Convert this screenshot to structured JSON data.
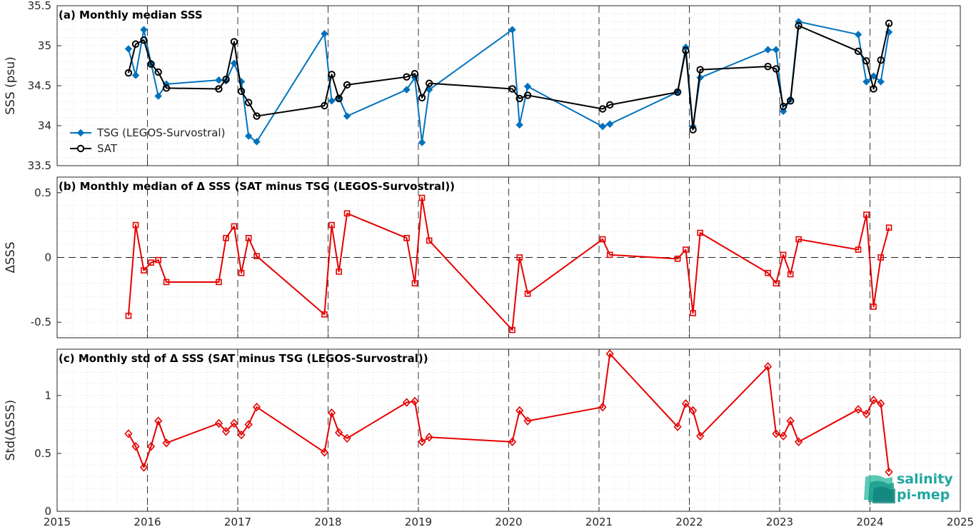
{
  "chart_data": [
    {
      "type": "line",
      "title": "(a) Monthly median SSS",
      "ylabel": "SSS (psu)",
      "xlim": [
        2015,
        2025
      ],
      "ylim": [
        33.5,
        35.5
      ],
      "yticks": [
        "33.5",
        "34",
        "34.5",
        "35",
        "35.5"
      ],
      "grid": true,
      "legend": "bottom-left",
      "series": [
        {
          "name": "TSG (LEGOS-Survostral)",
          "color": "#0072bd",
          "marker": "diamond-filled",
          "x": [
            2015.79,
            2015.87,
            2015.96,
            2016.04,
            2016.12,
            2016.21,
            2016.79,
            2016.87,
            2016.96,
            2017.04,
            2017.12,
            2017.21,
            2017.96,
            2018.04,
            2018.12,
            2018.21,
            2018.87,
            2018.96,
            2019.04,
            2019.12,
            2020.04,
            2020.12,
            2020.21,
            2021.04,
            2021.12,
            2021.87,
            2021.96,
            2022.04,
            2022.12,
            2022.87,
            2022.96,
            2023.04,
            2023.12,
            2023.21,
            2023.87,
            2023.96,
            2024.04,
            2024.12,
            2024.21
          ],
          "values": [
            34.96,
            34.63,
            35.2,
            34.78,
            34.37,
            34.52,
            34.57,
            34.56,
            34.78,
            34.55,
            33.87,
            33.8,
            35.15,
            34.31,
            34.35,
            34.12,
            34.45,
            34.6,
            33.79,
            34.45,
            35.2,
            34.01,
            34.49,
            33.99,
            34.02,
            34.42,
            34.98,
            33.99,
            34.6,
            34.95,
            34.95,
            34.18,
            34.33,
            35.3,
            35.14,
            34.55,
            34.62,
            34.55,
            35.17
          ]
        },
        {
          "name": "SAT",
          "color": "#000000",
          "marker": "circle-open",
          "x": [
            2015.79,
            2015.87,
            2015.96,
            2016.04,
            2016.12,
            2016.21,
            2016.79,
            2016.87,
            2016.96,
            2017.04,
            2017.12,
            2017.21,
            2017.96,
            2018.04,
            2018.12,
            2018.21,
            2018.87,
            2018.96,
            2019.04,
            2019.12,
            2020.04,
            2020.12,
            2020.21,
            2021.04,
            2021.12,
            2021.87,
            2021.96,
            2022.04,
            2022.12,
            2022.87,
            2022.96,
            2023.04,
            2023.12,
            2023.21,
            2023.87,
            2023.96,
            2024.04,
            2024.12,
            2024.21
          ],
          "values": [
            34.66,
            35.02,
            35.07,
            34.77,
            34.67,
            34.47,
            34.46,
            34.58,
            35.05,
            34.43,
            34.29,
            34.12,
            34.25,
            34.64,
            34.34,
            34.51,
            34.61,
            34.65,
            34.35,
            34.53,
            34.46,
            34.34,
            34.38,
            34.21,
            34.26,
            34.42,
            34.94,
            33.95,
            34.7,
            34.74,
            34.71,
            34.24,
            34.31,
            35.25,
            34.93,
            34.81,
            34.46,
            34.82,
            35.28
          ]
        }
      ]
    },
    {
      "type": "line",
      "title": "(b) Monthly median of Δ SSS (SAT minus TSG (LEGOS-Survostral))",
      "ylabel": "ΔSSS",
      "xlim": [
        2015,
        2025
      ],
      "ylim": [
        -0.62,
        0.62
      ],
      "yticks": [
        "-0.5",
        "0",
        "0.5"
      ],
      "zero_line": true,
      "grid": true,
      "series": [
        {
          "color": "#e60000",
          "marker": "square-open",
          "x": [
            2015.79,
            2015.87,
            2015.96,
            2016.04,
            2016.12,
            2016.21,
            2016.79,
            2016.87,
            2016.96,
            2017.04,
            2017.12,
            2017.21,
            2017.96,
            2018.04,
            2018.12,
            2018.21,
            2018.87,
            2018.96,
            2019.04,
            2019.12,
            2020.04,
            2020.12,
            2020.21,
            2021.04,
            2021.12,
            2021.87,
            2021.96,
            2022.04,
            2022.12,
            2022.87,
            2022.96,
            2023.04,
            2023.12,
            2023.21,
            2023.87,
            2023.96,
            2024.04,
            2024.12,
            2024.21
          ],
          "values": [
            -0.45,
            0.25,
            -0.1,
            -0.04,
            -0.02,
            -0.19,
            -0.19,
            0.15,
            0.24,
            -0.12,
            0.15,
            0.01,
            -0.44,
            0.25,
            -0.11,
            0.34,
            0.15,
            -0.2,
            0.46,
            0.13,
            -0.56,
            0.0,
            -0.28,
            0.14,
            0.02,
            -0.01,
            0.06,
            -0.43,
            0.19,
            -0.12,
            -0.2,
            0.02,
            -0.13,
            0.14,
            0.06,
            0.33,
            -0.38,
            0.0,
            0.23
          ]
        }
      ]
    },
    {
      "type": "line",
      "title": "(c) Monthly std of Δ SSS (SAT minus TSG (LEGOS-Survostral))",
      "ylabel": "Std(ΔSSS)",
      "xlabel": "",
      "xlim": [
        2015,
        2025
      ],
      "ylim": [
        0,
        1.4
      ],
      "yticks": [
        "0",
        "0.5",
        "1"
      ],
      "xticks": [
        "2015",
        "2016",
        "2017",
        "2018",
        "2019",
        "2020",
        "2021",
        "2022",
        "2023",
        "2024",
        "2025"
      ],
      "grid": true,
      "series": [
        {
          "color": "#e60000",
          "marker": "diamond-open",
          "x": [
            2015.79,
            2015.87,
            2015.96,
            2016.04,
            2016.12,
            2016.21,
            2016.79,
            2016.87,
            2016.96,
            2017.04,
            2017.12,
            2017.21,
            2017.96,
            2018.04,
            2018.12,
            2018.21,
            2018.87,
            2018.96,
            2019.04,
            2019.12,
            2020.04,
            2020.12,
            2020.21,
            2021.04,
            2021.12,
            2021.87,
            2021.96,
            2022.04,
            2022.12,
            2022.87,
            2022.96,
            2023.04,
            2023.12,
            2023.21,
            2023.87,
            2023.96,
            2024.04,
            2024.12,
            2024.21
          ],
          "values": [
            0.67,
            0.56,
            0.38,
            0.56,
            0.78,
            0.59,
            0.76,
            0.69,
            0.76,
            0.66,
            0.75,
            0.9,
            0.51,
            0.85,
            0.68,
            0.63,
            0.94,
            0.95,
            0.6,
            0.64,
            0.6,
            0.87,
            0.78,
            0.9,
            1.36,
            0.73,
            0.93,
            0.87,
            0.65,
            1.25,
            0.67,
            0.65,
            0.78,
            0.6,
            0.88,
            0.84,
            0.96,
            0.93,
            0.34
          ]
        }
      ]
    }
  ],
  "logo": {
    "line1": "salinity",
    "line2": "pi-mep"
  }
}
